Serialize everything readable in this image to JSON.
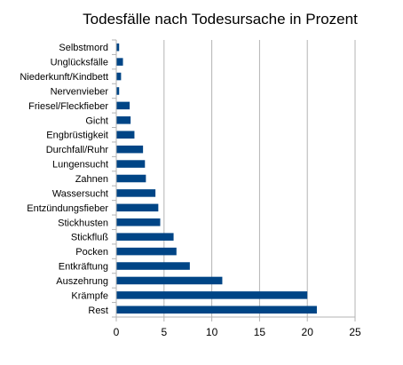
{
  "chart_data": {
    "type": "bar",
    "orientation": "horizontal",
    "title": "Todesfälle nach Todesursache in Prozent",
    "xlabel": "",
    "ylabel": "",
    "categories": [
      "Rest",
      "Krämpfe",
      "Auszehrung",
      "Entkräftung",
      "Pocken",
      "Stickfluß",
      "Stickhusten",
      "Entzündungsfieber",
      "Wassersucht",
      "Zahnen",
      "Lungensucht",
      "Durchfall/Ruhr",
      "Engbrüstigkeit",
      "Gicht",
      "Friesel/Fleckfieber",
      "Nervenvieber",
      "Niederkunft/Kindbett",
      "Unglücksfälle",
      "Selbstmord"
    ],
    "values": [
      21,
      20,
      11.1,
      7.7,
      6.3,
      6,
      4.6,
      4.4,
      4.1,
      3.1,
      3,
      2.8,
      1.9,
      1.5,
      1.4,
      0.3,
      0.5,
      0.7,
      0.3
    ],
    "xlim": [
      0,
      25
    ],
    "xticks": [
      0,
      5,
      10,
      15,
      20,
      25
    ],
    "grid": true,
    "legend": "none",
    "bar_color": "#004586"
  }
}
